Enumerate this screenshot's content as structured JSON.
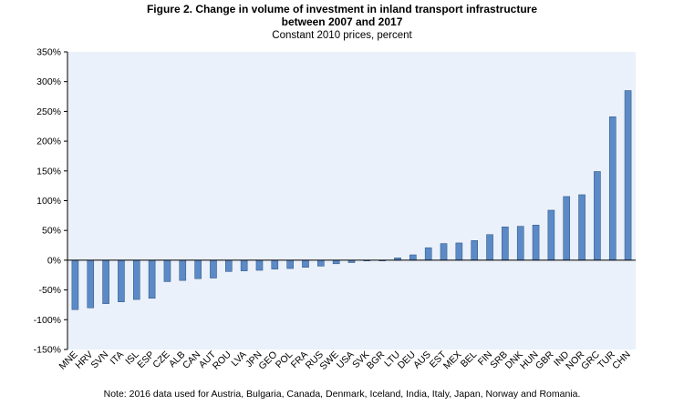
{
  "chart_data": {
    "type": "bar",
    "title": "Figure 2. Change in volume of investment in inland transport infrastructure",
    "title_line2": "between 2007 and 2017",
    "subtitle": "Constant 2010 prices, percent",
    "note": "Note: 2016 data used for Austria, Bulgaria,  Canada, Denmark, Iceland, India, Italy,  Japan, Norway  and Romania.",
    "ylim": [
      -150,
      350
    ],
    "yticks": [
      -150,
      -100,
      -50,
      0,
      50,
      100,
      150,
      200,
      250,
      300,
      350
    ],
    "ytick_labels": [
      "-150%",
      "-100%",
      "-50%",
      "0%",
      "50%",
      "100%",
      "150%",
      "200%",
      "250%",
      "300%",
      "350%"
    ],
    "grid": false,
    "colors": {
      "plot_background": "#eaf1fa",
      "bar_fill": "#5b8ac6",
      "bar_stroke": "#2c4d7c",
      "axis": "#000000"
    },
    "categories": [
      "MNE",
      "HRV",
      "SVN",
      "ITA",
      "ISL",
      "ESP",
      "CZE",
      "ALB",
      "CAN",
      "AUT",
      "ROU",
      "LVA",
      "JPN",
      "GEO",
      "POL",
      "FRA",
      "RUS",
      "SWE",
      "USA",
      "SVK",
      "BGR",
      "LTU",
      "DEU",
      "AUS",
      "EST",
      "MEX",
      "BEL",
      "FIN",
      "SRB",
      "DNK",
      "HUN",
      "GBR",
      "IND",
      "NOR",
      "GRC",
      "TUR",
      "CHN"
    ],
    "values": [
      -83,
      -80,
      -73,
      -70,
      -66,
      -64,
      -36,
      -34,
      -31,
      -30,
      -19,
      -18,
      -17,
      -15,
      -14,
      -12,
      -10,
      -6,
      -4,
      -1,
      -1,
      4,
      9,
      21,
      28,
      29,
      33,
      43,
      56,
      57,
      59,
      84,
      107,
      110,
      149,
      241,
      285
    ]
  }
}
